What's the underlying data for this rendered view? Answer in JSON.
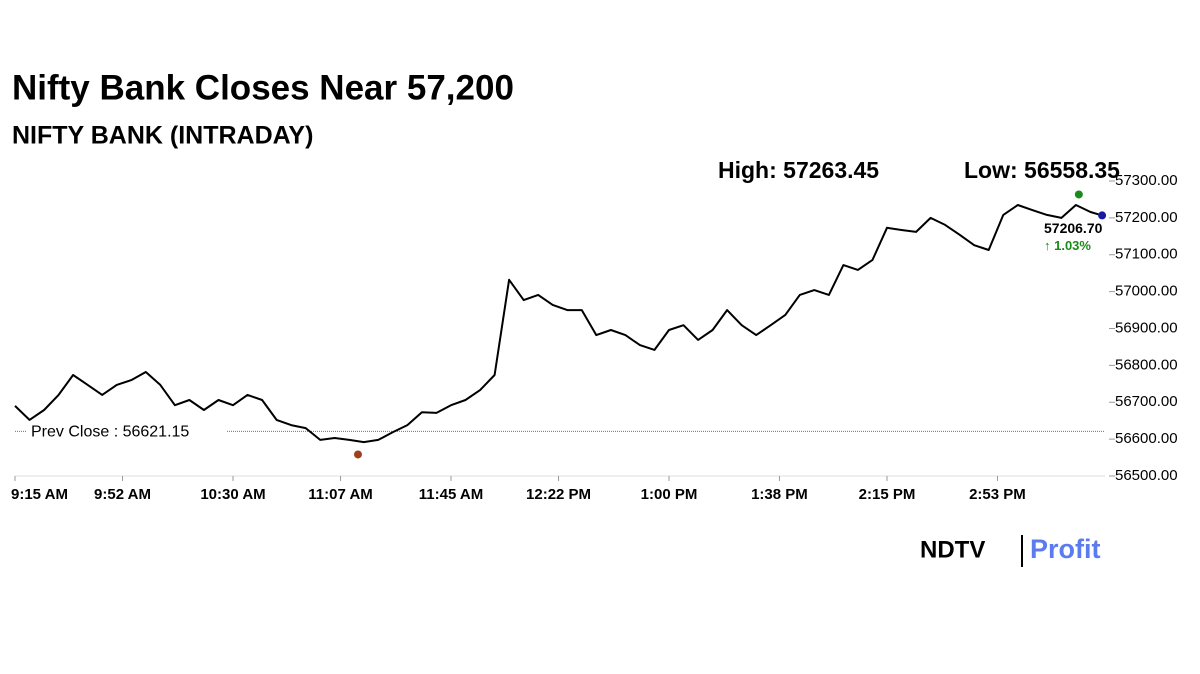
{
  "chart_data": {
    "type": "line",
    "title": "Nifty Bank Closes Near 57,200",
    "subtitle": "NIFTY BANK (INTRADAY)",
    "high": {
      "value": 57263.45,
      "label": "High: 57263.45"
    },
    "low": {
      "value": 56558.35,
      "label": "Low: 56558.35"
    },
    "high_time": "3:21 PM",
    "low_time": "11:13 AM",
    "prev_close": {
      "value": 56621.15,
      "label": "Prev Close : 56621.15"
    },
    "last": {
      "value": 57206.7,
      "label": "57206.70"
    },
    "last_time": "3:29 PM",
    "change_label": "↑ 1.03%",
    "x": [
      "9:15 AM",
      "9:20 AM",
      "9:25 AM",
      "9:30 AM",
      "9:35 AM",
      "9:40 AM",
      "9:45 AM",
      "9:50 AM",
      "9:55 AM",
      "10:00 AM",
      "10:05 AM",
      "10:10 AM",
      "10:15 AM",
      "10:20 AM",
      "10:25 AM",
      "10:30 AM",
      "10:35 AM",
      "10:40 AM",
      "10:45 AM",
      "10:50 AM",
      "10:55 AM",
      "11:00 AM",
      "11:05 AM",
      "11:10 AM",
      "11:15 AM",
      "11:20 AM",
      "11:25 AM",
      "11:30 AM",
      "11:35 AM",
      "11:40 AM",
      "11:45 AM",
      "11:50 AM",
      "11:55 AM",
      "12:00 PM",
      "12:05 PM",
      "12:10 PM",
      "12:15 PM",
      "12:20 PM",
      "12:25 PM",
      "12:30 PM",
      "12:35 PM",
      "12:40 PM",
      "12:45 PM",
      "12:50 PM",
      "12:55 PM",
      "1:00 PM",
      "1:05 PM",
      "1:10 PM",
      "1:15 PM",
      "1:20 PM",
      "1:25 PM",
      "1:30 PM",
      "1:35 PM",
      "1:40 PM",
      "1:45 PM",
      "1:50 PM",
      "1:55 PM",
      "2:00 PM",
      "2:05 PM",
      "2:10 PM",
      "2:15 PM",
      "2:20 PM",
      "2:25 PM",
      "2:30 PM",
      "2:35 PM",
      "2:40 PM",
      "2:45 PM",
      "2:50 PM",
      "2:55 PM",
      "3:00 PM",
      "3:05 PM",
      "3:10 PM",
      "3:15 PM",
      "3:20 PM",
      "3:25 PM",
      "3:29 PM"
    ],
    "series": [
      {
        "name": "NIFTY BANK",
        "color": "#000000",
        "values": [
          56690,
          56652,
          56679,
          56720,
          56774,
          56747,
          56720,
          56747,
          56760,
          56782,
          56747,
          56692,
          56706,
          56679,
          56706,
          56692,
          56720,
          56706,
          56652,
          56638,
          56630,
          56598,
          56603,
          56598,
          56592,
          56598,
          56619,
          56638,
          56673,
          56671,
          56692,
          56706,
          56733,
          56774,
          57032,
          56977,
          56991,
          56964,
          56950,
          56950,
          56882,
          56896,
          56882,
          56855,
          56842,
          56896,
          56909,
          56869,
          56896,
          56950,
          56909,
          56882,
          56909,
          56937,
          56991,
          57004,
          56991,
          57072,
          57059,
          57086,
          57173,
          57167,
          57162,
          57200,
          57181,
          57154,
          57126,
          57113,
          57208,
          57235,
          57221,
          57208,
          57200,
          57235,
          57216,
          57206.7
        ]
      }
    ],
    "xlim": [
      "9:15 AM",
      "3:30 PM"
    ],
    "xticks": [
      "9:15 AM",
      "9:52 AM",
      "10:30 AM",
      "11:07 AM",
      "11:45 AM",
      "12:22 PM",
      "1:00 PM",
      "1:38 PM",
      "2:15 PM",
      "2:53 PM"
    ],
    "ylim": [
      56500,
      57300
    ],
    "yticks": [
      {
        "value": 56500,
        "label": "56500.00"
      },
      {
        "value": 56600,
        "label": "56600.00"
      },
      {
        "value": 56700,
        "label": "56700.00"
      },
      {
        "value": 56800,
        "label": "56800.00"
      },
      {
        "value": 56900,
        "label": "56900.00"
      },
      {
        "value": 57000,
        "label": "57000.00"
      },
      {
        "value": 57100,
        "label": "57100.00"
      },
      {
        "value": 57200,
        "label": "57200.00"
      },
      {
        "value": 57300,
        "label": "57300.00"
      }
    ],
    "logo": {
      "left": "NDTV",
      "right": "Profit"
    }
  }
}
